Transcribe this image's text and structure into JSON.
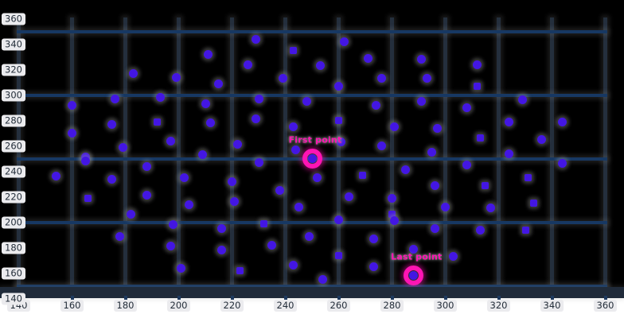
{
  "chart_data": {
    "type": "scatter",
    "title": "",
    "xlabel": "",
    "ylabel": "",
    "xlim": [
      140,
      367
    ],
    "ylim": [
      140,
      369
    ],
    "x_ticks": [
      140,
      160,
      180,
      200,
      220,
      240,
      260,
      280,
      300,
      320,
      340,
      360
    ],
    "y_ticks": [
      140,
      160,
      180,
      200,
      220,
      240,
      260,
      280,
      300,
      320,
      340,
      360
    ],
    "h_gridlines_at": [
      150,
      200,
      250,
      300,
      350
    ],
    "v_gridline_step": 20,
    "grid": true,
    "legend_position": "none",
    "series": [
      {
        "name": "scatter-points",
        "marker": "dot",
        "color": "#4316e3",
        "points": [
          [
            229,
            344,
            0
          ],
          [
            211,
            332,
            0
          ],
          [
            226,
            324,
            0
          ],
          [
            243,
            335,
            1
          ],
          [
            183,
            317,
            0
          ],
          [
            199,
            314,
            0
          ],
          [
            215,
            309,
            0
          ],
          [
            239,
            313,
            0
          ],
          [
            176,
            297,
            0
          ],
          [
            193,
            298,
            0
          ],
          [
            210,
            293,
            0
          ],
          [
            230,
            297,
            0
          ],
          [
            248,
            295,
            0
          ],
          [
            160,
            292,
            0
          ],
          [
            175,
            277,
            0
          ],
          [
            192,
            279,
            1
          ],
          [
            212,
            278,
            0
          ],
          [
            229,
            281,
            0
          ],
          [
            160,
            270,
            0
          ],
          [
            197,
            264,
            0
          ],
          [
            222,
            261,
            0
          ],
          [
            243,
            275,
            0
          ],
          [
            244,
            257,
            0
          ],
          [
            179,
            259,
            0
          ],
          [
            165,
            251,
            0
          ],
          [
            209,
            253,
            0
          ],
          [
            262,
            342,
            0
          ],
          [
            271,
            329,
            0
          ],
          [
            253,
            323,
            0
          ],
          [
            276,
            313,
            0
          ],
          [
            260,
            307,
            0
          ],
          [
            291,
            328,
            0
          ],
          [
            293,
            313,
            0
          ],
          [
            312,
            324,
            0
          ],
          [
            312,
            307,
            1
          ],
          [
            291,
            295,
            0
          ],
          [
            274,
            292,
            0
          ],
          [
            260,
            280,
            1
          ],
          [
            281,
            275,
            0
          ],
          [
            297,
            274,
            0
          ],
          [
            308,
            290,
            0
          ],
          [
            313,
            266,
            1
          ],
          [
            329,
            296,
            0
          ],
          [
            324,
            279,
            0
          ],
          [
            336,
            265,
            0
          ],
          [
            344,
            279,
            0
          ],
          [
            324,
            254,
            0
          ],
          [
            295,
            255,
            0
          ],
          [
            261,
            263,
            0
          ],
          [
            276,
            260,
            0
          ],
          [
            154,
            236,
            0
          ],
          [
            165,
            248,
            0
          ],
          [
            175,
            234,
            0
          ],
          [
            166,
            219,
            1
          ],
          [
            188,
            244,
            0
          ],
          [
            188,
            221,
            0
          ],
          [
            182,
            206,
            0
          ],
          [
            202,
            235,
            0
          ],
          [
            204,
            214,
            0
          ],
          [
            198,
            198,
            0
          ],
          [
            178,
            189,
            0
          ],
          [
            197,
            181,
            0
          ],
          [
            201,
            164,
            0
          ],
          [
            220,
            232,
            0
          ],
          [
            221,
            216,
            0
          ],
          [
            216,
            195,
            0
          ],
          [
            216,
            178,
            0
          ],
          [
            223,
            162,
            1
          ],
          [
            230,
            247,
            0
          ],
          [
            232,
            199,
            1
          ],
          [
            235,
            182,
            0
          ],
          [
            238,
            225,
            0
          ],
          [
            245,
            212,
            0
          ],
          [
            249,
            189,
            0
          ],
          [
            243,
            166,
            0
          ],
          [
            252,
            235,
            0
          ],
          [
            269,
            237,
            1
          ],
          [
            264,
            220,
            0
          ],
          [
            285,
            241,
            0
          ],
          [
            280,
            219,
            0
          ],
          [
            296,
            229,
            0
          ],
          [
            308,
            245,
            0
          ],
          [
            315,
            229,
            1
          ],
          [
            300,
            212,
            0
          ],
          [
            317,
            211,
            0
          ],
          [
            331,
            235,
            1
          ],
          [
            333,
            215,
            1
          ],
          [
            344,
            246,
            0
          ],
          [
            260,
            202,
            0
          ],
          [
            280,
            206,
            1
          ],
          [
            281,
            201,
            0
          ],
          [
            273,
            187,
            0
          ],
          [
            260,
            174,
            1
          ],
          [
            273,
            165,
            0
          ],
          [
            254,
            155,
            0
          ],
          [
            288,
            179,
            0
          ],
          [
            303,
            173,
            0
          ],
          [
            313,
            194,
            0
          ],
          [
            330,
            194,
            1
          ],
          [
            296,
            195,
            0
          ],
          [
            250,
            250,
            0
          ],
          [
            288,
            158,
            0
          ]
        ]
      }
    ],
    "annotations": [
      {
        "label": "First point",
        "x": 250,
        "y": 250
      },
      {
        "label": "Last point",
        "x": 288,
        "y": 158
      }
    ]
  },
  "colors": {
    "plot_background": "#000000",
    "page_background": "#ffffff",
    "vertical_grid": "#242f3d",
    "horizontal_grid": "#173863",
    "axis_bar": "#202b3a",
    "point": "#4316e3",
    "highlight": "#ff14b4",
    "tick_label_bg": "#ebebee",
    "tick_label_text": "#242e3a"
  }
}
